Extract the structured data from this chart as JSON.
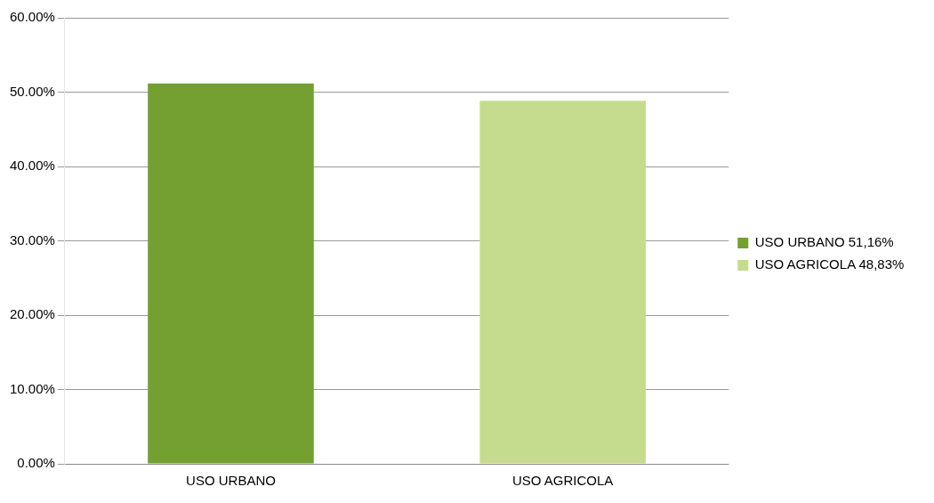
{
  "chart_data": {
    "type": "bar",
    "categories": [
      "USO URBANO",
      "USO AGRICOLA"
    ],
    "series": [
      {
        "name": "USO URBANO 51,16%",
        "color": "#74a032",
        "values": [
          51.16,
          null
        ]
      },
      {
        "name": "USO AGRICOLA 48,83%",
        "color": "#c5dc8e",
        "values": [
          null,
          48.83
        ]
      }
    ],
    "ylim": [
      0,
      60
    ],
    "yticks": [
      {
        "value": 0,
        "label": "0.00%"
      },
      {
        "value": 10,
        "label": "10.00%"
      },
      {
        "value": 20,
        "label": "20.00%"
      },
      {
        "value": 30,
        "label": "30.00%"
      },
      {
        "value": 40,
        "label": "40.00%"
      },
      {
        "value": 50,
        "label": "50.00%"
      },
      {
        "value": 60,
        "label": "60.00%"
      }
    ],
    "grid": "y",
    "legend": "right"
  }
}
